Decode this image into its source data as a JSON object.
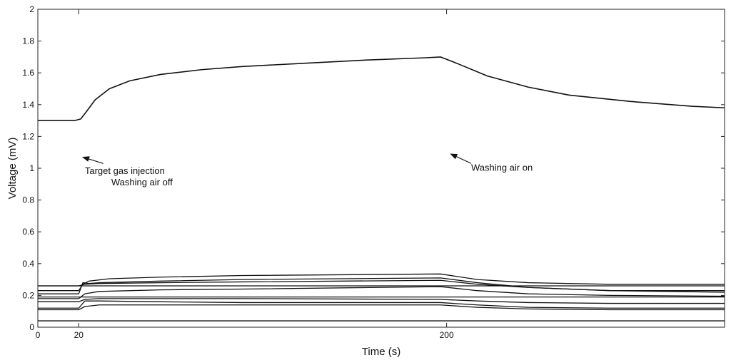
{
  "chart_data": {
    "type": "line",
    "title": "",
    "xlabel": "Time (s)",
    "ylabel": "Voltage (mV)",
    "xlim": [
      0,
      336
    ],
    "ylim": [
      0,
      2
    ],
    "x_ticks": [
      {
        "value": 0,
        "label": "0"
      },
      {
        "value": 20,
        "label": "20"
      },
      {
        "value": 200,
        "label": "200"
      }
    ],
    "y_ticks": [
      {
        "value": 0,
        "label": "0"
      },
      {
        "value": 0.2,
        "label": "0.2"
      },
      {
        "value": 0.4,
        "label": "0.4"
      },
      {
        "value": 0.6,
        "label": "0.6"
      },
      {
        "value": 0.8,
        "label": "0.8"
      },
      {
        "value": 1,
        "label": "1"
      },
      {
        "value": 1.2,
        "label": "1.2"
      },
      {
        "value": 1.4,
        "label": "1.4"
      },
      {
        "value": 1.6,
        "label": "1.6"
      },
      {
        "value": 1.8,
        "label": "1.8"
      },
      {
        "value": 2,
        "label": "2"
      }
    ],
    "grid": false,
    "legend": "none",
    "line_color": "#111111",
    "series": [
      {
        "x": [
          0,
          10,
          18,
          21,
          24,
          28,
          35,
          45,
          60,
          80,
          100,
          130,
          160,
          190,
          197,
          205,
          220,
          240,
          260,
          290,
          320,
          336
        ],
        "y": [
          1.3,
          1.3,
          1.3,
          1.31,
          1.36,
          1.43,
          1.5,
          1.55,
          1.59,
          1.62,
          1.64,
          1.66,
          1.68,
          1.695,
          1.7,
          1.66,
          1.58,
          1.51,
          1.46,
          1.42,
          1.39,
          1.38
        ]
      },
      {
        "x": [
          0,
          20,
          22,
          25,
          35,
          60,
          100,
          197,
          215,
          240,
          280,
          336
        ],
        "y": [
          0.23,
          0.23,
          0.27,
          0.29,
          0.305,
          0.315,
          0.325,
          0.335,
          0.3,
          0.28,
          0.27,
          0.27
        ]
      },
      {
        "x": [
          0,
          20,
          22,
          25,
          30,
          60,
          100,
          197,
          215,
          240,
          280,
          336
        ],
        "y": [
          0.21,
          0.21,
          0.28,
          0.275,
          0.28,
          0.29,
          0.3,
          0.31,
          0.28,
          0.25,
          0.23,
          0.23
        ]
      },
      {
        "x": [
          0,
          20,
          23,
          30,
          60,
          100,
          197,
          215,
          240,
          280,
          336
        ],
        "y": [
          0.26,
          0.26,
          0.27,
          0.275,
          0.28,
          0.285,
          0.295,
          0.27,
          0.25,
          0.23,
          0.22
        ]
      },
      {
        "x": [
          0,
          20,
          23,
          30,
          60,
          100,
          197,
          215,
          240,
          280,
          336
        ],
        "y": [
          0.18,
          0.18,
          0.21,
          0.225,
          0.235,
          0.24,
          0.255,
          0.23,
          0.21,
          0.2,
          0.195
        ]
      },
      {
        "x": [
          0,
          20,
          23,
          30,
          60,
          100,
          197,
          215,
          240,
          280,
          336
        ],
        "y": [
          0.16,
          0.16,
          0.175,
          0.18,
          0.18,
          0.18,
          0.175,
          0.165,
          0.155,
          0.15,
          0.15
        ]
      },
      {
        "x": [
          0,
          20,
          23,
          30,
          60,
          100,
          197,
          215,
          240,
          280,
          336
        ],
        "y": [
          0.12,
          0.12,
          0.165,
          0.165,
          0.16,
          0.155,
          0.155,
          0.14,
          0.125,
          0.12,
          0.12
        ]
      },
      {
        "x": [
          0,
          20,
          23,
          30,
          60,
          100,
          197,
          215,
          240,
          280,
          336
        ],
        "y": [
          0.11,
          0.11,
          0.13,
          0.14,
          0.14,
          0.14,
          0.14,
          0.125,
          0.115,
          0.11,
          0.11
        ]
      },
      {
        "x": [
          0,
          336
        ],
        "y": [
          0.26,
          0.26
        ]
      },
      {
        "x": [
          0,
          336
        ],
        "y": [
          0.19,
          0.19
        ]
      },
      {
        "x": [
          0,
          336
        ],
        "y": [
          0.04,
          0.04
        ]
      }
    ],
    "annotations": [
      {
        "lines": [
          "Target gas injection",
          "Washing air off"
        ],
        "text_x": 23,
        "text_y": 0.965,
        "align": "start",
        "arrow_from": [
          32,
          1.03
        ],
        "arrow_to": [
          22,
          1.07
        ]
      },
      {
        "lines": [
          "Washing air on"
        ],
        "text_x": 212,
        "text_y": 0.985,
        "align": "start",
        "arrow_from": [
          212,
          1.03
        ],
        "arrow_to": [
          202,
          1.09
        ]
      }
    ]
  }
}
